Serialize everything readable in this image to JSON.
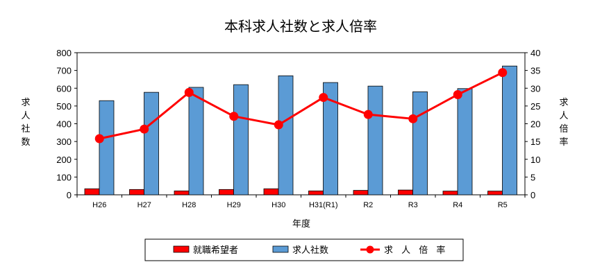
{
  "chart_data": {
    "type": "bar",
    "title": "本科求人社数と求人倍率",
    "xlabel": "年度",
    "ylabel_left": [
      "求",
      "人",
      "社",
      "数"
    ],
    "ylabel_right": [
      "求",
      "人",
      "倍",
      "率"
    ],
    "categories": [
      "H26",
      "H27",
      "H28",
      "H29",
      "H30",
      "H31(R1)",
      "R2",
      "R3",
      "R4",
      "R5"
    ],
    "ylim_left": [
      0,
      800
    ],
    "yticks_left": [
      0,
      100,
      200,
      300,
      400,
      500,
      600,
      700,
      800
    ],
    "ylim_right": [
      0,
      40
    ],
    "yticks_right": [
      0,
      5,
      10,
      15,
      20,
      25,
      30,
      35,
      40
    ],
    "series": [
      {
        "name": "就職希望者",
        "type": "bar",
        "axis": "left",
        "color": "#ff0000",
        "values": [
          34,
          30,
          22,
          30,
          34,
          22,
          25,
          27,
          21,
          21
        ]
      },
      {
        "name": "求人社数",
        "type": "bar",
        "axis": "left",
        "color": "#5b9bd5",
        "values": [
          530,
          577,
          605,
          620,
          670,
          632,
          612,
          580,
          598,
          725
        ]
      },
      {
        "name": "求 人 倍 率",
        "type": "line",
        "axis": "right",
        "color": "#ff0000",
        "values": [
          15.8,
          18.5,
          28.8,
          22.1,
          19.7,
          27.4,
          22.6,
          21.4,
          28.2,
          34.4
        ]
      }
    ],
    "legend_position": "bottom",
    "grid": false
  }
}
